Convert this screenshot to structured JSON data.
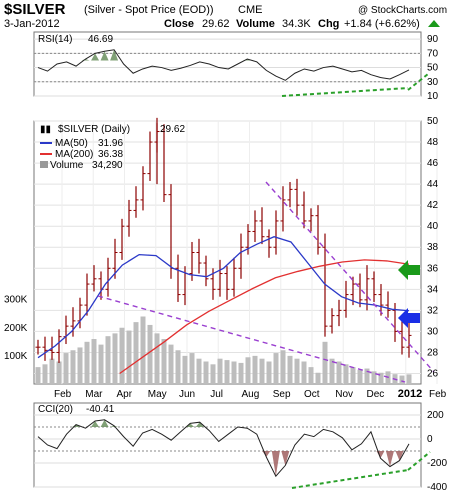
{
  "header": {
    "symbol": "$SILVER",
    "description": "(Silver - Spot Price (EOD))",
    "exchange": "CME",
    "watermark": "@ StockCharts.com",
    "date": "3-Jan-2012",
    "close_label": "Close",
    "close_value": "29.62",
    "volume_label": "Volume",
    "volume_value": "34.3K",
    "chg_label": "Chg",
    "chg_value": "+1.84 (+6.62%)",
    "chg_arrow": "up-arrow-icon"
  },
  "colors": {
    "price_bars": "#8b0000",
    "ma50": "#2b39c8",
    "ma200": "#e23030",
    "volume": "#b8b8b8",
    "trendline": "#9a3fd0",
    "divergence": "#2aa02a",
    "green_arrow": "#1a9a1a",
    "blue_arrow": "#1a2ee6",
    "indicator_fill": "#6a8f5e",
    "indicator_fill_low": "#a06060"
  },
  "chart_data": [
    {
      "panel": "rsi",
      "type": "line",
      "label": "RSI(14)",
      "value_text": "46.69",
      "ylim": [
        10,
        100
      ],
      "y_ticks": [
        "90",
        "70",
        "50",
        "30",
        "10"
      ],
      "reference_lines": [
        70,
        30
      ],
      "values": [
        50,
        45,
        55,
        58,
        52,
        62,
        70,
        73,
        75,
        55,
        42,
        48,
        52,
        50,
        46,
        49,
        53,
        58,
        55,
        50,
        48,
        55,
        62,
        58,
        46,
        38,
        32,
        42,
        48,
        45,
        50,
        52,
        48,
        44,
        46,
        40,
        36,
        34,
        40,
        46.69
      ]
    },
    {
      "panel": "price",
      "type": "ohlc",
      "label": "$SILVER (Daily)",
      "value_text": "29.62",
      "ylim": [
        25,
        50
      ],
      "y_ticks": [
        "50",
        "48",
        "46",
        "44",
        "42",
        "40",
        "38",
        "36",
        "34",
        "32",
        "30",
        "28",
        "26"
      ],
      "x_ticks": [
        "Feb",
        "Mar",
        "Apr",
        "May",
        "Jun",
        "Jul",
        "Aug",
        "Sep",
        "Oct",
        "Nov",
        "Dec",
        "2012",
        "Feb"
      ],
      "close": [
        28.5,
        28.2,
        28.0,
        29.5,
        30.5,
        31.0,
        32.5,
        34.5,
        35.0,
        34.0,
        36.0,
        37.5,
        40.0,
        41.5,
        42.5,
        45.0,
        48.0,
        49.0,
        43.0,
        36.0,
        33.5,
        35.5,
        37.5,
        36.5,
        35.0,
        34.0,
        35.5,
        34.0,
        36.0,
        38.0,
        39.5,
        40.5,
        39.0,
        38.0,
        40.5,
        42.5,
        43.5,
        42.0,
        40.5,
        41.0,
        38.0,
        30.5,
        31.5,
        32.0,
        33.5,
        34.5,
        33.0,
        35.0,
        33.5,
        32.5,
        32.0,
        30.0,
        28.5,
        29.62
      ],
      "ma_series": [
        {
          "name": "MA(50)",
          "value_text": "31.96",
          "values": [
            27.5,
            28.6,
            30.0,
            32.0,
            34.5,
            36.3,
            37.3,
            37.2,
            36.0,
            35.4,
            35.2,
            36.0,
            37.5,
            38.3,
            39.0,
            38.5,
            36.5,
            34.5,
            33.3,
            32.7,
            32.5,
            32.1,
            31.96
          ]
        },
        {
          "name": "MA(200)",
          "value_text": "36.38",
          "values": [
            26.0,
            27.5,
            29.0,
            30.6,
            31.9,
            33.0,
            34.1,
            35.1,
            35.7,
            36.2,
            36.6,
            36.8,
            36.7,
            36.38
          ]
        }
      ],
      "volume_series": {
        "name": "Volume",
        "value_text": "34,290",
        "y_ticks": [
          "300K",
          "200K",
          "100K"
        ],
        "values": [
          60,
          70,
          90,
          80,
          110,
          120,
          130,
          150,
          160,
          140,
          170,
          180,
          200,
          190,
          220,
          240,
          210,
          180,
          160,
          140,
          120,
          100,
          110,
          90,
          80,
          70,
          90,
          85,
          80,
          75,
          95,
          100,
          90,
          80,
          110,
          120,
          100,
          90,
          80,
          60,
          40,
          150,
          90,
          80,
          70,
          60,
          50,
          55,
          45,
          40,
          45,
          35,
          30,
          34.29
        ]
      }
    },
    {
      "panel": "cci",
      "type": "line",
      "label": "CCI(20)",
      "value_text": "-40.41",
      "ylim": [
        -400,
        300
      ],
      "y_ticks": [
        "200",
        "0",
        "-200",
        "-400"
      ],
      "reference_lines": [
        100,
        -100
      ],
      "values": [
        20,
        -50,
        -80,
        40,
        120,
        90,
        150,
        160,
        110,
        20,
        -60,
        50,
        80,
        40,
        -10,
        60,
        130,
        140,
        70,
        -20,
        40,
        100,
        90,
        40,
        -150,
        -310,
        -220,
        -50,
        40,
        20,
        80,
        60,
        10,
        -90,
        -40,
        60,
        -160,
        -230,
        -180,
        -40.41
      ]
    }
  ]
}
